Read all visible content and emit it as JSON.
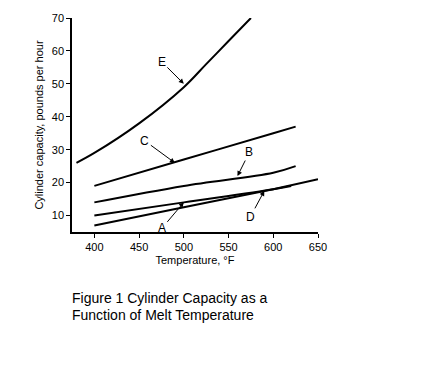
{
  "chart_data": {
    "type": "line",
    "title": "Figure 1 Cylinder Capacity as a Function of Melt Temperature",
    "x_label": "Temperature, °F",
    "y_label": "Cylinder capacity, pounds per hour",
    "xlim": [
      375,
      650
    ],
    "xticks": [
      400,
      450,
      500,
      550,
      600,
      650
    ],
    "ylim": [
      5,
      70
    ],
    "yticks": [
      10,
      20,
      30,
      40,
      50,
      60,
      70
    ],
    "grid": false,
    "series": [
      {
        "name": "E",
        "color": "#000000",
        "x": [
          380,
          400,
          450,
          500,
          525,
          550,
          575
        ],
        "values": [
          26,
          29,
          38,
          49,
          56,
          63,
          70
        ]
      },
      {
        "name": "C",
        "color": "#000000",
        "x": [
          400,
          500,
          600,
          625
        ],
        "values": [
          19,
          27,
          35,
          37
        ]
      },
      {
        "name": "B",
        "color": "#000000",
        "x": [
          400,
          500,
          600,
          625
        ],
        "values": [
          14,
          19,
          23,
          25
        ]
      },
      {
        "name": "A",
        "color": "#000000",
        "x": [
          400,
          500,
          600,
          620
        ],
        "values": [
          10,
          14,
          18,
          19
        ]
      },
      {
        "name": "D",
        "color": "#000000",
        "x": [
          400,
          500,
          600,
          650
        ],
        "values": [
          7,
          12.5,
          18,
          21
        ]
      }
    ],
    "annotations": [
      {
        "text": "E",
        "x": 500,
        "y": 50
      },
      {
        "text": "C",
        "x": 490,
        "y": 26
      },
      {
        "text": "B",
        "x": 560,
        "y": 22
      },
      {
        "text": "A",
        "x": 500,
        "y": 14
      },
      {
        "text": "D",
        "x": 590,
        "y": 17.5
      }
    ]
  }
}
